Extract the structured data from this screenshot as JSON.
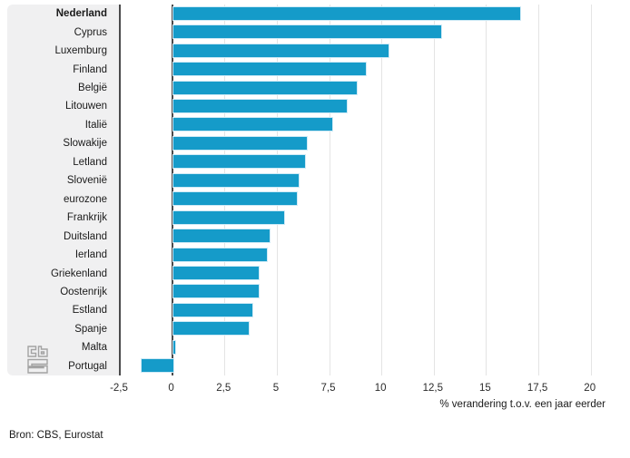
{
  "chart_data": {
    "type": "bar",
    "orientation": "horizontal",
    "title": "",
    "categories": [
      "Nederland",
      "Cyprus",
      "Luxemburg",
      "Finland",
      "België",
      "Litouwen",
      "Italië",
      "Slowakije",
      "Letland",
      "Slovenië",
      "eurozone",
      "Frankrijk",
      "Duitsland",
      "Ierland",
      "Griekenland",
      "Oostenrijk",
      "Estland",
      "Spanje",
      "Malta",
      "Portugal"
    ],
    "values": [
      16.6,
      12.8,
      10.3,
      9.2,
      8.8,
      8.3,
      7.6,
      6.4,
      6.3,
      6.0,
      5.9,
      5.3,
      4.6,
      4.5,
      4.1,
      4.1,
      3.8,
      3.6,
      0.1,
      -1.5
    ],
    "highlight_category": "Nederland",
    "xlabel": "% verandering t.o.v. een jaar eerder",
    "xlim": [
      -2.5,
      20.75
    ],
    "xticks": [
      {
        "v": -2.5,
        "label": "-2,5"
      },
      {
        "v": 0,
        "label": "0"
      },
      {
        "v": 2.5,
        "label": "2,5"
      },
      {
        "v": 5,
        "label": "5"
      },
      {
        "v": 7.5,
        "label": "7,5"
      },
      {
        "v": 10,
        "label": "10"
      },
      {
        "v": 12.5,
        "label": "12,5"
      },
      {
        "v": 15,
        "label": "15"
      },
      {
        "v": 17.5,
        "label": "17,5"
      },
      {
        "v": 20,
        "label": "20"
      }
    ],
    "grid": true,
    "legend": false,
    "bar_color": "#159bc9",
    "bar_outline_color": "#cfeaf6",
    "axis_line_color": "#4a4a4b",
    "label_panel_color": "#f0f0f1"
  },
  "footer": {
    "source": "Bron: CBS, Eurostat"
  },
  "branding": {
    "logo_name": "cbs-logo"
  }
}
